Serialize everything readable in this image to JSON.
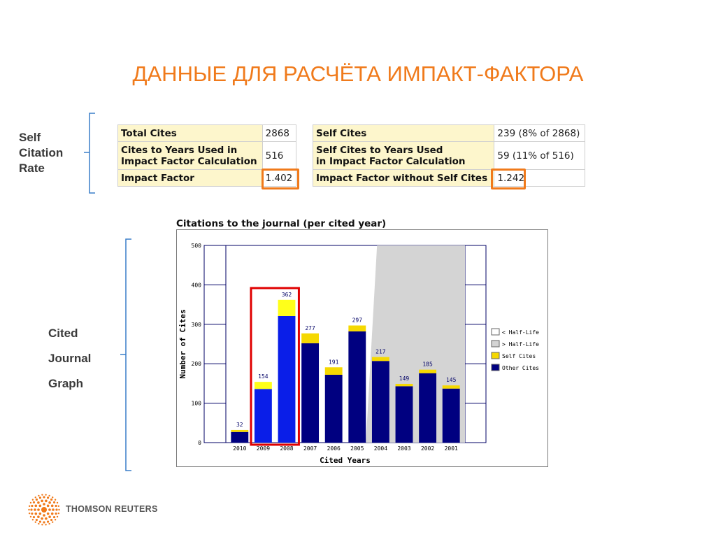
{
  "slide": {
    "title": "ДАННЫЕ ДЛЯ РАСЧЁТА ИМПАКТ-ФАКТОРА"
  },
  "labels": {
    "self_citation": [
      "Self",
      "Citation",
      "Rate"
    ],
    "cited_journal": [
      "Cited",
      "Journal",
      "Graph"
    ]
  },
  "left_table": [
    {
      "key": [
        "Total Cites"
      ],
      "value": "2868"
    },
    {
      "key": [
        "Cites to Years Used in",
        "Impact Factor Calculation"
      ],
      "value": "516"
    },
    {
      "key": [
        "Impact Factor"
      ],
      "value": "1.402"
    }
  ],
  "right_table": [
    {
      "key": [
        "Self Cites"
      ],
      "value": "239 (8% of 2868)"
    },
    {
      "key": [
        "Self Cites to Years Used",
        "in Impact Factor Calculation"
      ],
      "value": "59 (11% of 516)"
    },
    {
      "key": [
        "Impact Factor without Self Cites"
      ],
      "value": "1.242"
    }
  ],
  "colors": {
    "title": "#f07a1b",
    "highlight": "#f07a1b",
    "other_cites": "#000080",
    "self_cites": "#f5d800",
    "half_life": "#d4d4d4",
    "selected_box": "#e00000"
  },
  "logo": {
    "text": "THOMSON REUTERS"
  },
  "chart_data": {
    "type": "bar",
    "stacked": true,
    "title": "Citations to the journal (per cited year)",
    "xlabel": "Cited Years",
    "ylabel": "Number of Cites",
    "ylim": [
      0,
      500
    ],
    "yticks": [
      0,
      100,
      200,
      300,
      400,
      500
    ],
    "categories": [
      "2010",
      "2009",
      "2008",
      "2007",
      "2006",
      "2005",
      "2004",
      "2003",
      "2002",
      "2001"
    ],
    "totals": [
      32,
      154,
      362,
      277,
      191,
      297,
      217,
      149,
      185,
      145
    ],
    "series": [
      {
        "name": "Other Cites",
        "values": [
          27,
          136,
          321,
          252,
          172,
          282,
          207,
          143,
          176,
          137
        ]
      },
      {
        "name": "Self Cites",
        "values": [
          5,
          18,
          41,
          25,
          19,
          15,
          10,
          6,
          9,
          8
        ]
      }
    ],
    "highlighted_categories": [
      "2009",
      "2008"
    ],
    "legend": [
      "< Half-Life",
      "> Half-Life",
      "Self Cites",
      "Other Cites"
    ],
    "legend_position": "right",
    "half_life_boundary": "2005"
  }
}
